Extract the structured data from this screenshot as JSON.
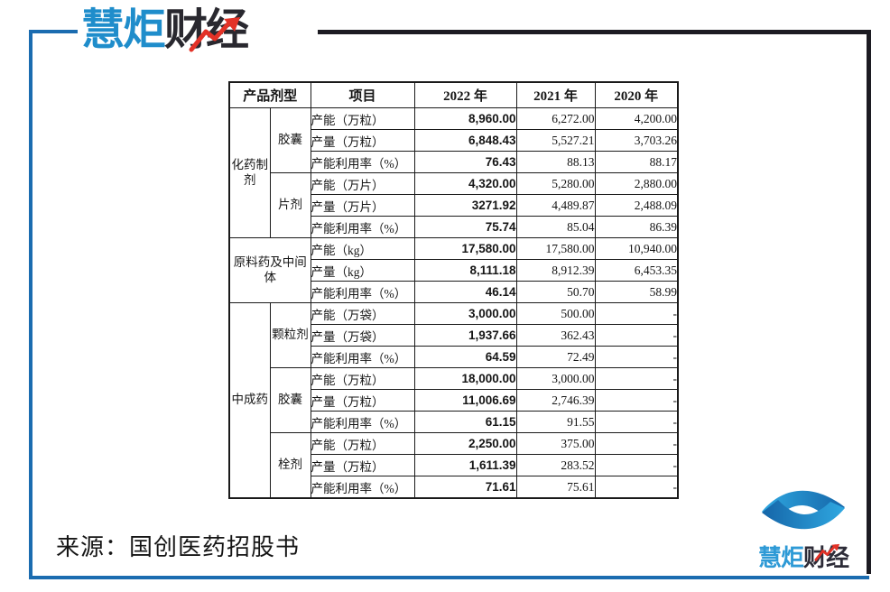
{
  "brand": {
    "name_blue": "慧炬",
    "name_dark": "财经"
  },
  "footer": {
    "source_note": "来源：国创医药招股书"
  },
  "colors": {
    "frame_blue": "#1b6cb0",
    "frame_dark": "#1c1b22",
    "logo_blue": "#1f8dcb",
    "logo_dark": "#29282f",
    "accent_red": "#e33227",
    "highlight_red": "#e8231d",
    "mark_blue_light": "#2fa8e1",
    "mark_blue_dark": "#1565a8"
  },
  "table": {
    "headers": [
      "产品剂型",
      "项目",
      "2022 年",
      "2021 年",
      "2020 年"
    ],
    "groups": [
      {
        "category": "化药制剂",
        "span_full": false,
        "subgroups": [
          {
            "name": "胶囊",
            "rows": [
              {
                "item": "产能（万粒）",
                "v2022": "8,960.00",
                "v2021": "6,272.00",
                "v2020": "4,200.00"
              },
              {
                "item": "产量（万粒）",
                "v2022": "6,848.43",
                "v2021": "5,527.21",
                "v2020": "3,703.26"
              },
              {
                "item": "产能利用率（%）",
                "v2022": "76.43",
                "v2021": "88.13",
                "v2020": "88.17"
              }
            ]
          },
          {
            "name": "片剂",
            "rows": [
              {
                "item": "产能（万片）",
                "v2022": "4,320.00",
                "v2021": "5,280.00",
                "v2020": "2,880.00"
              },
              {
                "item": "产量（万片）",
                "v2022": "3271.92",
                "v2021": "4,489.87",
                "v2020": "2,488.09"
              },
              {
                "item": "产能利用率（%）",
                "v2022": "75.74",
                "v2021": "85.04",
                "v2020": "86.39"
              }
            ]
          }
        ]
      },
      {
        "category": "原料药及中间体",
        "span_full": true,
        "subgroups": [
          {
            "name": null,
            "rows": [
              {
                "item": "产能（kg）",
                "v2022": "17,580.00",
                "v2021": "17,580.00",
                "v2020": "10,940.00"
              },
              {
                "item": "产量（kg）",
                "v2022": "8,111.18",
                "v2021": "8,912.39",
                "v2020": "6,453.35"
              },
              {
                "item": "产能利用率（%）",
                "v2022": "46.14",
                "v2021": "50.70",
                "v2020": "58.99",
                "highlight": true
              }
            ]
          }
        ]
      },
      {
        "category": "中成药",
        "span_full": false,
        "subgroups": [
          {
            "name": "颗粒剂",
            "rows": [
              {
                "item": "产能（万袋）",
                "v2022": "3,000.00",
                "v2021": "500.00",
                "v2020": "-"
              },
              {
                "item": "产量（万袋）",
                "v2022": "1,937.66",
                "v2021": "362.43",
                "v2020": "-"
              },
              {
                "item": "产能利用率（%）",
                "v2022": "64.59",
                "v2021": "72.49",
                "v2020": "-"
              }
            ]
          },
          {
            "name": "胶囊",
            "rows": [
              {
                "item": "产能（万粒）",
                "v2022": "18,000.00",
                "v2021": "3,000.00",
                "v2020": "-"
              },
              {
                "item": "产量（万粒）",
                "v2022": "11,006.69",
                "v2021": "2,746.39",
                "v2020": "-"
              },
              {
                "item": "产能利用率（%）",
                "v2022": "61.15",
                "v2021": "91.55",
                "v2020": "-"
              }
            ]
          },
          {
            "name": "栓剂",
            "rows": [
              {
                "item": "产能（万粒）",
                "v2022": "2,250.00",
                "v2021": "375.00",
                "v2020": "-"
              },
              {
                "item": "产量（万粒）",
                "v2022": "1,611.39",
                "v2021": "283.52",
                "v2020": "-"
              },
              {
                "item": "产能利用率（%）",
                "v2022": "71.61",
                "v2021": "75.61",
                "v2020": "-"
              }
            ]
          }
        ]
      }
    ]
  }
}
